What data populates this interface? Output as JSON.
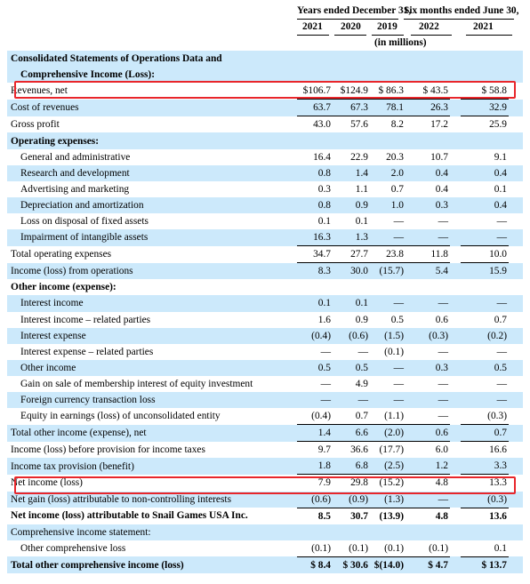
{
  "header": {
    "years_label": "Years ended December 31,",
    "six_months_label": "Six months ended June 30,",
    "cols": [
      "2021",
      "2020",
      "2019",
      "2022",
      "2021"
    ],
    "units": "(in millions)"
  },
  "rows": [
    {
      "label": "Consolidated Statements of Operations Data and",
      "style": "bold",
      "shade": true,
      "values": [
        "",
        "",
        "",
        "",
        ""
      ]
    },
    {
      "label": "Comprehensive Income (Loss):",
      "style": "bold-indent",
      "shade": true,
      "values": [
        "",
        "",
        "",
        "",
        ""
      ]
    },
    {
      "label": "Revenues, net",
      "style": "normal",
      "shade": false,
      "values": [
        "$106.7",
        "$124.9",
        "$ 86.3",
        "$ 43.5",
        "$ 58.8"
      ]
    },
    {
      "label": "Cost of revenues",
      "style": "normal",
      "shade": true,
      "values": [
        "63.7",
        "67.3",
        "78.1",
        "26.3",
        "32.9"
      ]
    },
    {
      "label": "Gross profit",
      "style": "normal",
      "shade": false,
      "values": [
        "43.0",
        "57.6",
        "8.2",
        "17.2",
        "25.9"
      ]
    },
    {
      "label": "Operating expenses:",
      "style": "bold",
      "shade": true,
      "values": [
        "",
        "",
        "",
        "",
        ""
      ]
    },
    {
      "label": "General and administrative",
      "style": "indent",
      "shade": false,
      "values": [
        "16.4",
        "22.9",
        "20.3",
        "10.7",
        "9.1"
      ]
    },
    {
      "label": "Research and development",
      "style": "indent",
      "shade": true,
      "values": [
        "0.8",
        "1.4",
        "2.0",
        "0.4",
        "0.4"
      ]
    },
    {
      "label": "Advertising and marketing",
      "style": "indent",
      "shade": false,
      "values": [
        "0.3",
        "1.1",
        "0.7",
        "0.4",
        "0.1"
      ]
    },
    {
      "label": "Depreciation and amortization",
      "style": "indent",
      "shade": true,
      "values": [
        "0.8",
        "0.9",
        "1.0",
        "0.3",
        "0.4"
      ]
    },
    {
      "label": "Loss on disposal of fixed assets",
      "style": "indent",
      "shade": false,
      "values": [
        "0.1",
        "0.1",
        "—",
        "—",
        "—"
      ]
    },
    {
      "label": "Impairment of intangible assets",
      "style": "indent",
      "shade": true,
      "values": [
        "16.3",
        "1.3",
        "—",
        "—",
        "—"
      ]
    },
    {
      "label": "Total operating expenses",
      "style": "normal",
      "shade": false,
      "values": [
        "34.7",
        "27.7",
        "23.8",
        "11.8",
        "10.0"
      ]
    },
    {
      "label": "Income (loss) from operations",
      "style": "normal",
      "shade": true,
      "values": [
        "8.3",
        "30.0",
        "(15.7)",
        "5.4",
        "15.9"
      ]
    },
    {
      "label": "Other income (expense):",
      "style": "bold",
      "shade": false,
      "values": [
        "",
        "",
        "",
        "",
        ""
      ]
    },
    {
      "label": "Interest income",
      "style": "indent",
      "shade": true,
      "values": [
        "0.1",
        "0.1",
        "—",
        "—",
        "—"
      ]
    },
    {
      "label": "Interest income – related parties",
      "style": "indent",
      "shade": false,
      "values": [
        "1.6",
        "0.9",
        "0.5",
        "0.6",
        "0.7"
      ]
    },
    {
      "label": "Interest expense",
      "style": "indent",
      "shade": true,
      "values": [
        "(0.4)",
        "(0.6)",
        "(1.5)",
        "(0.3)",
        "(0.2)"
      ]
    },
    {
      "label": "Interest expense – related parties",
      "style": "indent",
      "shade": false,
      "values": [
        "—",
        "—",
        "(0.1)",
        "—",
        "—"
      ]
    },
    {
      "label": "Other income",
      "style": "indent",
      "shade": true,
      "values": [
        "0.5",
        "0.5",
        "—",
        "0.3",
        "0.5"
      ]
    },
    {
      "label": "Gain on sale of membership interest of equity investment",
      "style": "indent",
      "shade": false,
      "values": [
        "—",
        "4.9",
        "—",
        "—",
        "—"
      ]
    },
    {
      "label": "Foreign currency transaction loss",
      "style": "indent",
      "shade": true,
      "values": [
        "—",
        "—",
        "—",
        "—",
        "—"
      ]
    },
    {
      "label": "Equity in earnings (loss) of unconsolidated entity",
      "style": "indent",
      "shade": false,
      "values": [
        "(0.4)",
        "0.7",
        "(1.1)",
        "—",
        "(0.3)"
      ]
    },
    {
      "label": "Total other income (expense), net",
      "style": "normal",
      "shade": true,
      "values": [
        "1.4",
        "6.6",
        "(2.0)",
        "0.6",
        "0.7"
      ]
    },
    {
      "label": "Income (loss) before provision for income taxes",
      "style": "normal",
      "shade": false,
      "values": [
        "9.7",
        "36.6",
        "(17.7)",
        "6.0",
        "16.6"
      ]
    },
    {
      "label": "Income tax provision (benefit)",
      "style": "normal",
      "shade": true,
      "values": [
        "1.8",
        "6.8",
        "(2.5)",
        "1.2",
        "3.3"
      ]
    },
    {
      "label": "Net income (loss)",
      "style": "normal",
      "shade": false,
      "values": [
        "7.9",
        "29.8",
        "(15.2)",
        "4.8",
        "13.3"
      ]
    },
    {
      "label": "Net gain (loss) attributable to non-controlling interests",
      "style": "normal",
      "shade": true,
      "values": [
        "(0.6)",
        "(0.9)",
        "(1.3)",
        "—",
        "(0.3)"
      ]
    },
    {
      "label": "Net income (loss) attributable to Snail Games USA Inc.",
      "style": "bold",
      "shade": false,
      "values": [
        "8.5",
        "30.7",
        "(13.9)",
        "4.8",
        "13.6"
      ]
    },
    {
      "label": "Comprehensive income statement:",
      "style": "normal",
      "shade": true,
      "values": [
        "",
        "",
        "",
        "",
        ""
      ]
    },
    {
      "label": "Other comprehensive loss",
      "style": "indent",
      "shade": false,
      "values": [
        "(0.1)",
        "(0.1)",
        "(0.1)",
        "(0.1)",
        "0.1"
      ]
    },
    {
      "label": "Total other comprehensive income (loss)",
      "style": "bold",
      "shade": true,
      "values": [
        "$ 8.4",
        "$ 30.6",
        "$(14.0)",
        "$ 4.7",
        "$ 13.7"
      ]
    }
  ],
  "highlight_color": "#e8262b",
  "shade_color": "#cce9fb"
}
